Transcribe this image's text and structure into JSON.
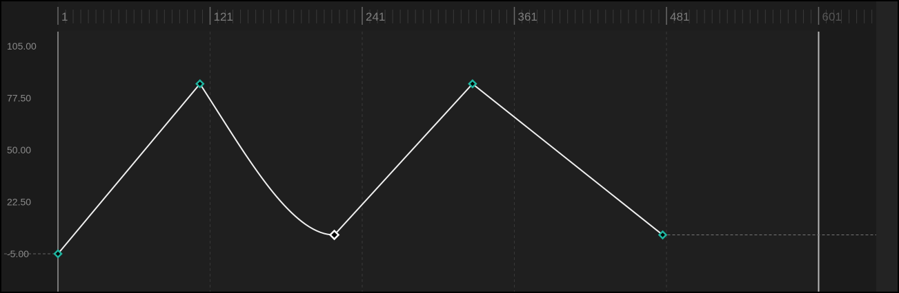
{
  "chart_data": {
    "type": "line",
    "title": "",
    "xlabel": "",
    "ylabel": "",
    "x_ticks": [
      "1",
      "121",
      "241",
      "361",
      "481",
      "601"
    ],
    "y_ticks": [
      "105.00",
      "77.50",
      "50.00",
      "22.50",
      "-5.00"
    ],
    "xlim": [
      1,
      646
    ],
    "ylim": [
      -18,
      118
    ],
    "playhead_frame": 601,
    "grid": true,
    "keyframes": [
      {
        "frame": 1,
        "value": -5,
        "selected": false,
        "interpolation_out": "linear"
      },
      {
        "frame": 113,
        "value": 85,
        "selected": false,
        "interpolation_out": "ease-in"
      },
      {
        "frame": 219,
        "value": 5,
        "selected": true,
        "interpolation_out": "linear"
      },
      {
        "frame": 328,
        "value": 85,
        "selected": false,
        "interpolation_out": "linear"
      },
      {
        "frame": 478,
        "value": 5,
        "selected": false,
        "interpolation_out": "hold-extend"
      }
    ],
    "colors": {
      "keyframe": "#1fb5a0",
      "selected_keyframe": "#ffffff",
      "curve": "#f0f0f0",
      "background": "#1f1f1f",
      "gutter": "#1b1b1b",
      "playhead": "#b8b8b8"
    }
  }
}
